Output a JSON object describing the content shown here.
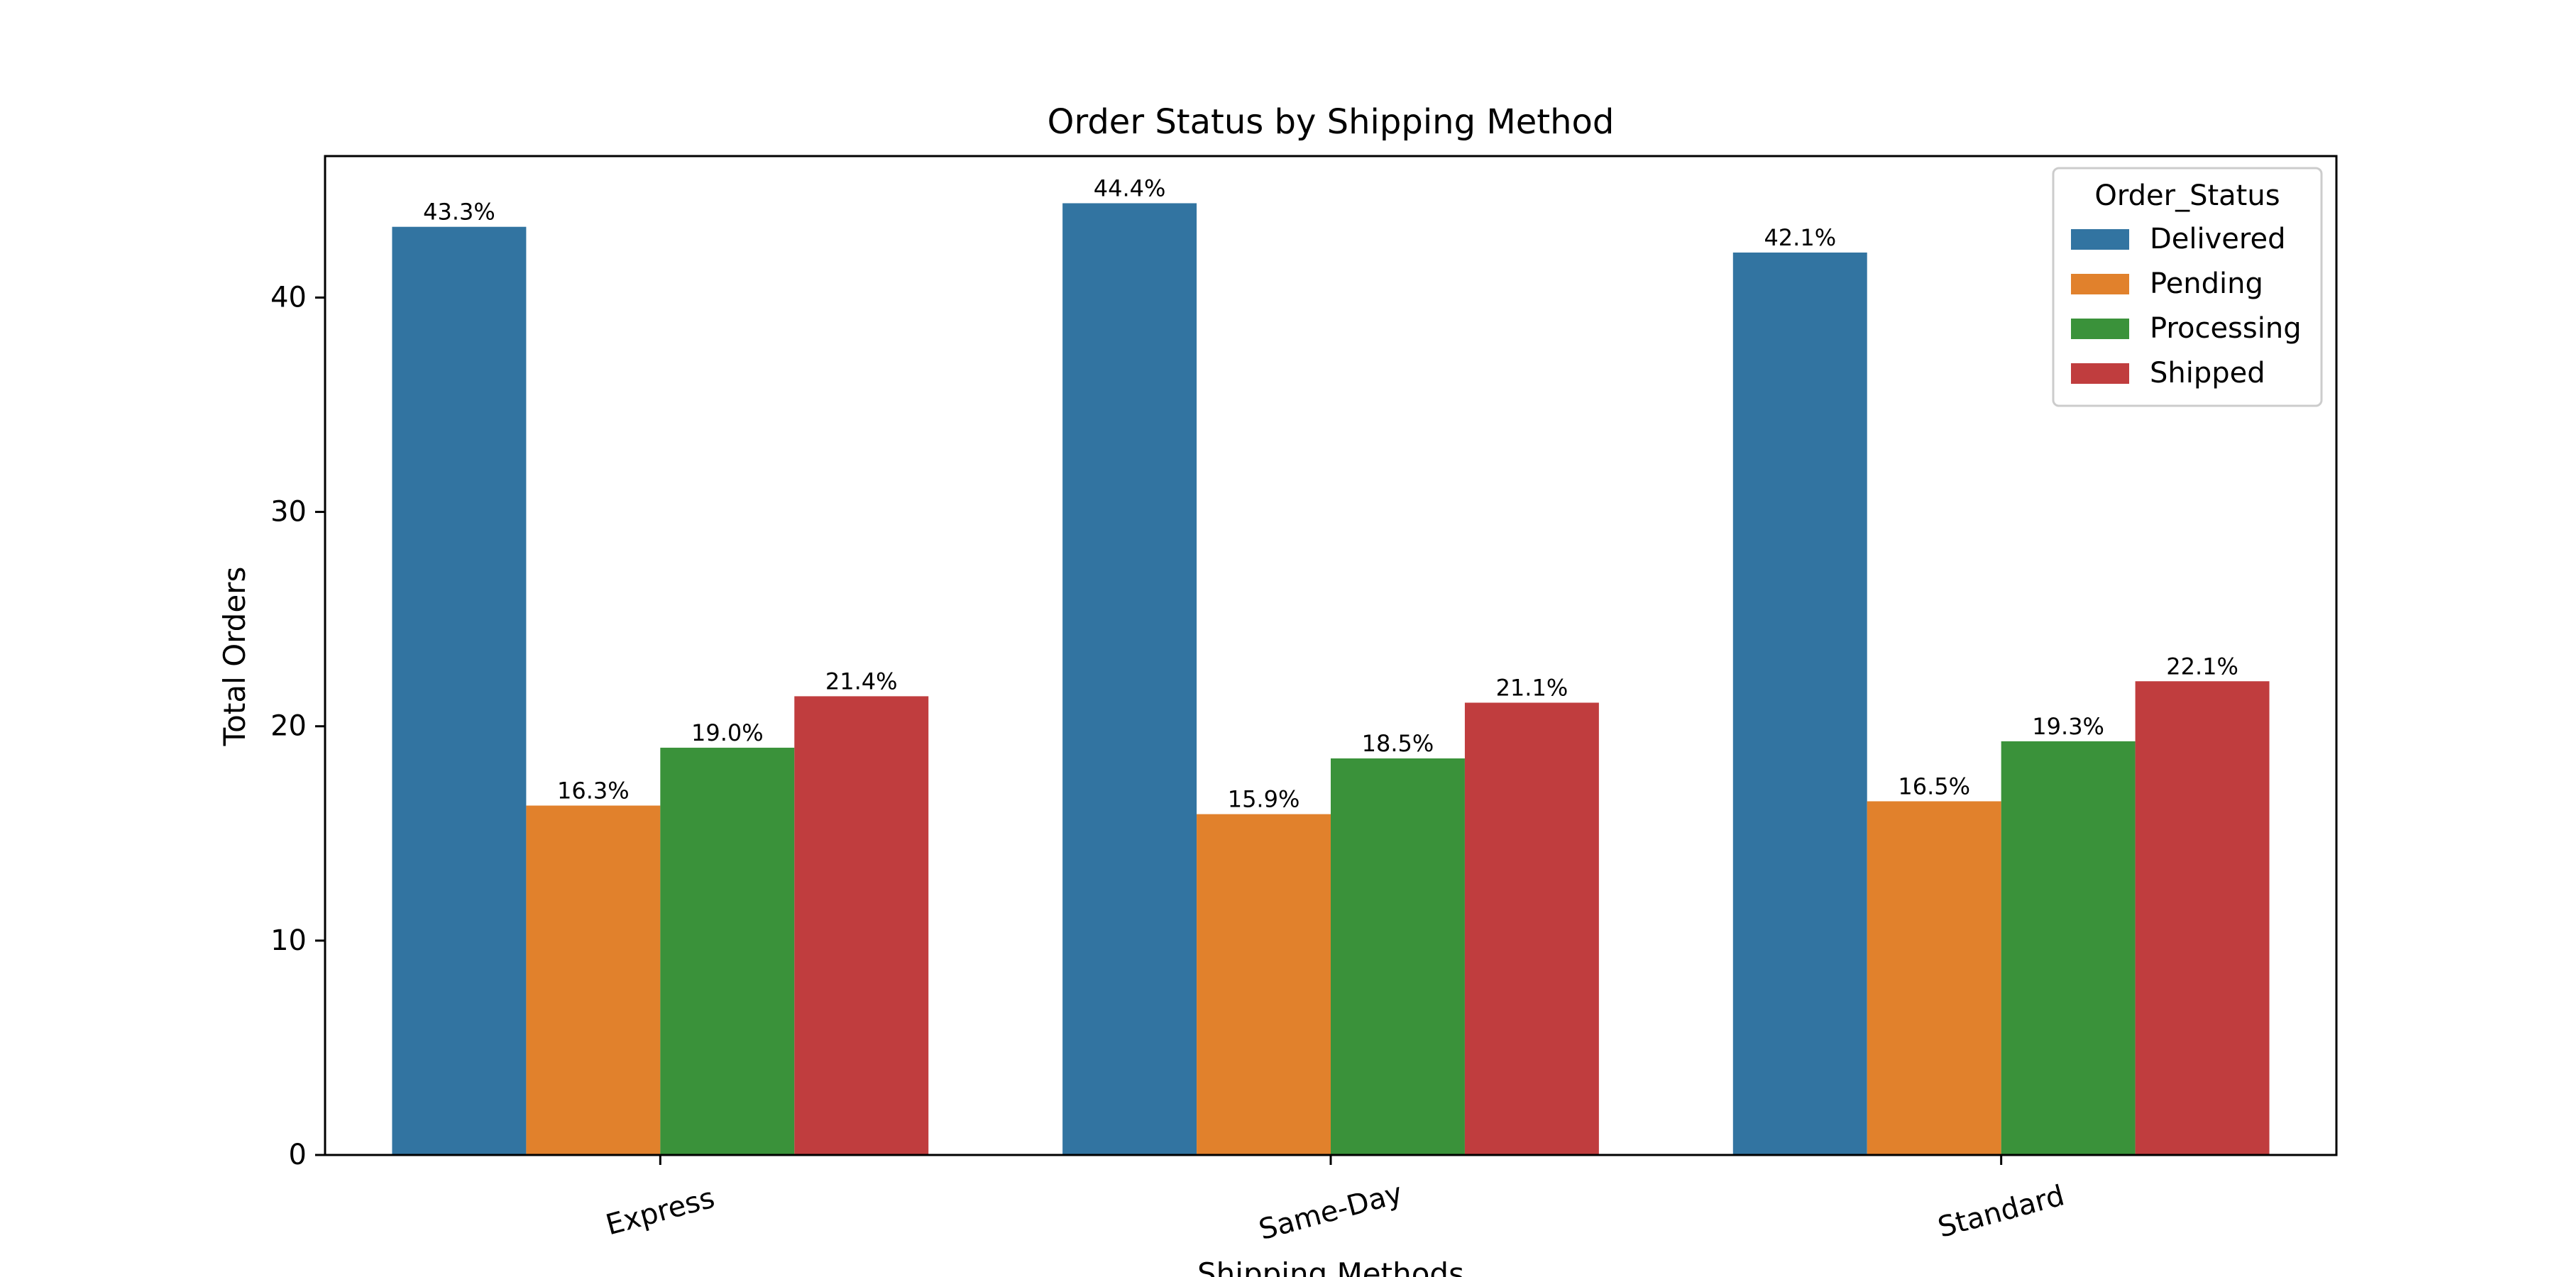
{
  "chart_data": {
    "type": "bar",
    "title": "Order Status by Shipping Method",
    "xlabel": "Shipping Methods",
    "ylabel": "Total Orders",
    "categories": [
      "Express",
      "Same-Day",
      "Standard"
    ],
    "yticks": [
      0,
      10,
      20,
      30,
      40
    ],
    "ylim": [
      0,
      46.6
    ],
    "grid": false,
    "legend": {
      "title": "Order_Status",
      "placement": "top-right"
    },
    "series": [
      {
        "name": "Delivered",
        "color": "#3274a1",
        "values": [
          43.3,
          44.4,
          42.1
        ],
        "labels": [
          "43.3%",
          "44.4%",
          "42.1%"
        ]
      },
      {
        "name": "Pending",
        "color": "#e1812c",
        "values": [
          16.3,
          15.9,
          16.5
        ],
        "labels": [
          "16.3%",
          "15.9%",
          "16.5%"
        ]
      },
      {
        "name": "Processing",
        "color": "#3a923a",
        "values": [
          19.0,
          18.5,
          19.3
        ],
        "labels": [
          "19.0%",
          "18.5%",
          "19.3%"
        ]
      },
      {
        "name": "Shipped",
        "color": "#c03d3e",
        "values": [
          21.4,
          21.1,
          22.1
        ],
        "labels": [
          "21.4%",
          "21.1%",
          "22.1%"
        ]
      }
    ]
  }
}
